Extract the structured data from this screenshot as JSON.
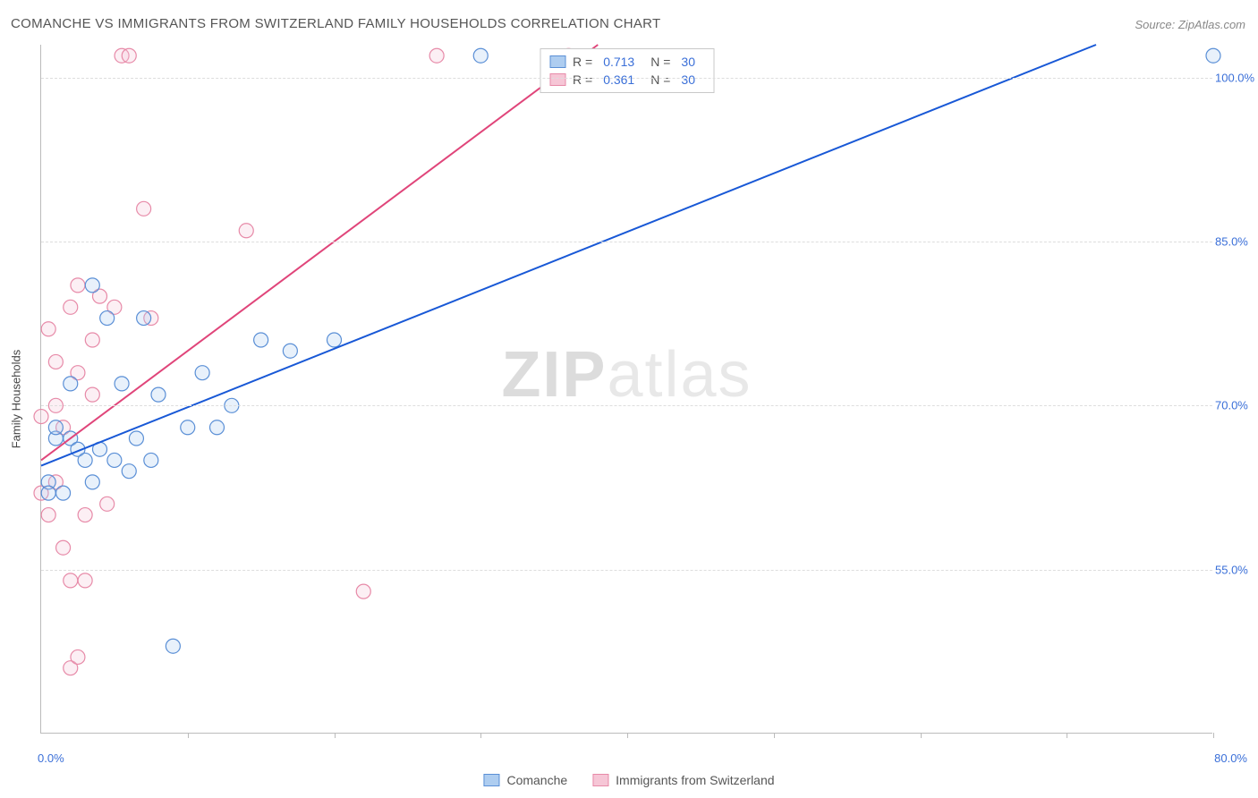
{
  "title": "COMANCHE VS IMMIGRANTS FROM SWITZERLAND FAMILY HOUSEHOLDS CORRELATION CHART",
  "source": "Source: ZipAtlas.com",
  "watermark": {
    "zip": "ZIP",
    "atlas": "atlas"
  },
  "yaxis_label": "Family Households",
  "chart": {
    "type": "scatter",
    "xlim": [
      0,
      80
    ],
    "ylim": [
      40,
      103
    ],
    "xtick_positions": [
      0,
      10,
      20,
      30,
      40,
      50,
      60,
      70,
      80
    ],
    "yticks": [
      {
        "value": 100,
        "label": "100.0%"
      },
      {
        "value": 85,
        "label": "85.0%"
      },
      {
        "value": 70,
        "label": "70.0%"
      },
      {
        "value": 55,
        "label": "55.0%"
      }
    ],
    "xaxis_min_label": "0.0%",
    "xaxis_max_label": "80.0%",
    "background_color": "#ffffff",
    "grid_color": "#dddddd",
    "axis_color": "#bbbbbb",
    "marker_radius": 8,
    "marker_fill_opacity": 0.28,
    "marker_stroke_width": 1.2,
    "line_width": 2,
    "series": [
      {
        "name": "Comanche",
        "color_stroke": "#5a8fd6",
        "color_fill": "#aecdf0",
        "line_color": "#1858d6",
        "r_value": "0.713",
        "n_value": "30",
        "regression": {
          "x1": 0,
          "y1": 64.5,
          "x2": 72,
          "y2": 103
        },
        "points": [
          {
            "x": 0.5,
            "y": 63
          },
          {
            "x": 0.5,
            "y": 62
          },
          {
            "x": 1,
            "y": 67
          },
          {
            "x": 1,
            "y": 68
          },
          {
            "x": 1.5,
            "y": 62
          },
          {
            "x": 2,
            "y": 72
          },
          {
            "x": 2,
            "y": 67
          },
          {
            "x": 2.5,
            "y": 66
          },
          {
            "x": 3,
            "y": 65
          },
          {
            "x": 3.5,
            "y": 63
          },
          {
            "x": 3.5,
            "y": 81
          },
          {
            "x": 4,
            "y": 66
          },
          {
            "x": 4.5,
            "y": 78
          },
          {
            "x": 5,
            "y": 65
          },
          {
            "x": 5.5,
            "y": 72
          },
          {
            "x": 6,
            "y": 64
          },
          {
            "x": 6.5,
            "y": 67
          },
          {
            "x": 7,
            "y": 78
          },
          {
            "x": 7.5,
            "y": 65
          },
          {
            "x": 8,
            "y": 71
          },
          {
            "x": 9,
            "y": 48
          },
          {
            "x": 10,
            "y": 68
          },
          {
            "x": 11,
            "y": 73
          },
          {
            "x": 12,
            "y": 68
          },
          {
            "x": 13,
            "y": 70
          },
          {
            "x": 15,
            "y": 76
          },
          {
            "x": 17,
            "y": 75
          },
          {
            "x": 20,
            "y": 76
          },
          {
            "x": 30,
            "y": 102
          },
          {
            "x": 80,
            "y": 102
          }
        ]
      },
      {
        "name": "Immigrants from Switzerland",
        "color_stroke": "#e78aa8",
        "color_fill": "#f6c6d6",
        "line_color": "#e0457a",
        "r_value": "0.361",
        "n_value": "30",
        "regression": {
          "x1": 0,
          "y1": 65,
          "x2": 38,
          "y2": 103
        },
        "points": [
          {
            "x": 0,
            "y": 69
          },
          {
            "x": 0,
            "y": 62
          },
          {
            "x": 0.5,
            "y": 60
          },
          {
            "x": 0.5,
            "y": 77
          },
          {
            "x": 1,
            "y": 63
          },
          {
            "x": 1,
            "y": 70
          },
          {
            "x": 1,
            "y": 74
          },
          {
            "x": 1.5,
            "y": 68
          },
          {
            "x": 1.5,
            "y": 57
          },
          {
            "x": 2,
            "y": 54
          },
          {
            "x": 2,
            "y": 79
          },
          {
            "x": 2,
            "y": 46
          },
          {
            "x": 2.5,
            "y": 81
          },
          {
            "x": 2.5,
            "y": 73
          },
          {
            "x": 2.5,
            "y": 47
          },
          {
            "x": 3,
            "y": 60
          },
          {
            "x": 3,
            "y": 54
          },
          {
            "x": 3.5,
            "y": 71
          },
          {
            "x": 3.5,
            "y": 76
          },
          {
            "x": 4,
            "y": 80
          },
          {
            "x": 4.5,
            "y": 61
          },
          {
            "x": 5,
            "y": 79
          },
          {
            "x": 5.5,
            "y": 102
          },
          {
            "x": 6,
            "y": 102
          },
          {
            "x": 7,
            "y": 88
          },
          {
            "x": 7.5,
            "y": 78
          },
          {
            "x": 14,
            "y": 86
          },
          {
            "x": 22,
            "y": 53
          },
          {
            "x": 27,
            "y": 102
          },
          {
            "x": 36,
            "y": 102
          }
        ]
      }
    ]
  },
  "legend_top_label_r": "R =",
  "legend_top_label_n": "N =",
  "legend_bottom": {
    "items": [
      {
        "label": "Comanche",
        "stroke": "#5a8fd6",
        "fill": "#aecdf0"
      },
      {
        "label": "Immigrants from Switzerland",
        "stroke": "#e78aa8",
        "fill": "#f6c6d6"
      }
    ]
  }
}
